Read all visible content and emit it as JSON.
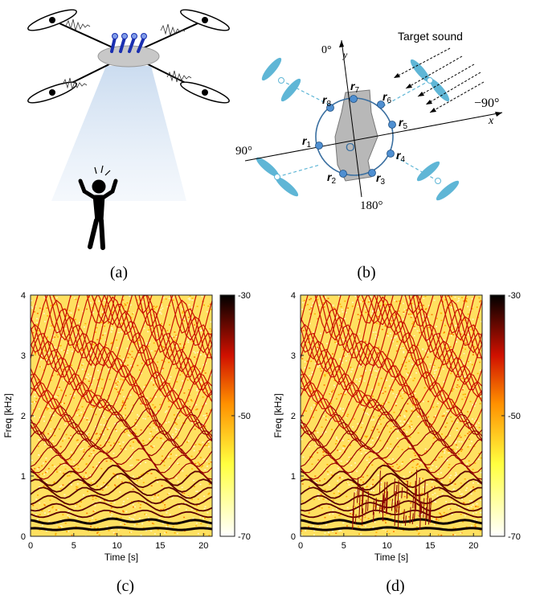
{
  "captions": {
    "a": "(a)",
    "b": "(b)",
    "c": "(c)",
    "d": "(d)"
  },
  "diagram_b": {
    "target_label": "Target sound",
    "angle_0": "0°",
    "angle_neg90": "−90°",
    "angle_90": "90°",
    "angle_180": "180°",
    "axis_x": "x",
    "axis_y": "y",
    "origin": "O",
    "mics": [
      {
        "sym": "r",
        "sub": "1"
      },
      {
        "sym": "r",
        "sub": "2"
      },
      {
        "sym": "r",
        "sub": "3"
      },
      {
        "sym": "r",
        "sub": "4"
      },
      {
        "sym": "r",
        "sub": "5"
      },
      {
        "sym": "r",
        "sub": "6"
      },
      {
        "sym": "r",
        "sub": "7"
      },
      {
        "sym": "r",
        "sub": "8"
      }
    ]
  },
  "colors": {
    "drone_body": "#c8c8c8",
    "mic_blue": "#1a2fb0",
    "beam": "#d8e6f4",
    "circle": "#3a6fa0",
    "mic_dot": "#4f8fd1",
    "prop_cyan": "#5fb6d6"
  },
  "chart_data": [
    {
      "type": "heatmap",
      "panel": "c",
      "xlabel": "Time [s]",
      "ylabel": "Freq [kHz]",
      "xlim": [
        0,
        21
      ],
      "ylim": [
        0,
        4
      ],
      "xticks": [
        "0",
        "5",
        "10",
        "15",
        "20"
      ],
      "yticks": [
        "0",
        "1",
        "2",
        "3",
        "4"
      ],
      "colorbar": {
        "ticks": [
          "-30",
          "-50",
          "-70"
        ],
        "range": [
          -70,
          -30
        ]
      },
      "extra_noise": false
    },
    {
      "type": "heatmap",
      "panel": "d",
      "xlabel": "Time [s]",
      "ylabel": "Freq [kHz]",
      "xlim": [
        0,
        21
      ],
      "ylim": [
        0,
        4
      ],
      "xticks": [
        "0",
        "5",
        "10",
        "15",
        "20"
      ],
      "yticks": [
        "0",
        "1",
        "2",
        "3",
        "4"
      ],
      "colorbar": {
        "ticks": [
          "-30",
          "-50",
          "-70"
        ],
        "range": [
          -70,
          -30
        ]
      },
      "extra_noise": true
    }
  ]
}
